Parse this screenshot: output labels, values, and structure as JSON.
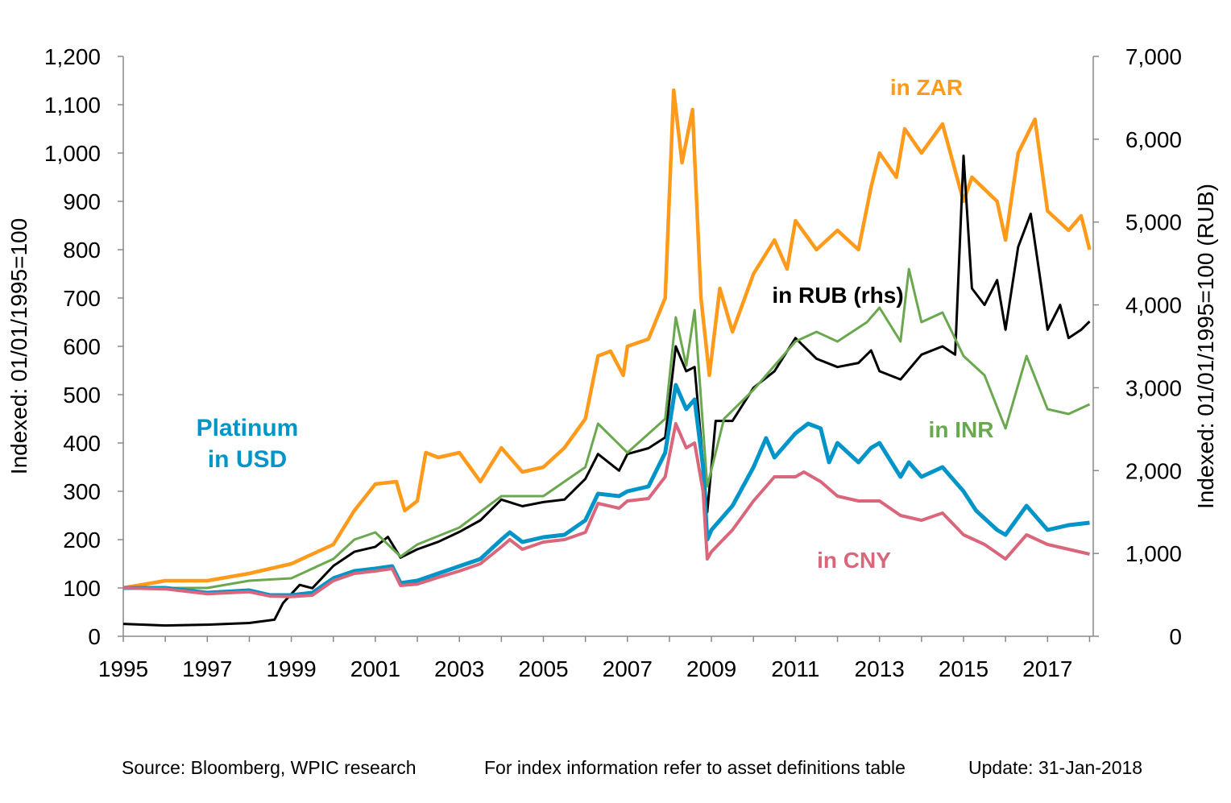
{
  "chart_data": {
    "type": "line",
    "title": "",
    "xlabel": "",
    "ylabel": "Indexed: 01/01/1995=100",
    "ylabel_right": "Indexed: 01/01/1995=100  (RUB)",
    "xlim": [
      1995,
      2018.1
    ],
    "ylim": [
      0,
      1200
    ],
    "ylim_right": [
      0,
      7000
    ],
    "x_ticks": [
      "1995",
      "1997",
      "1999",
      "2001",
      "2003",
      "2005",
      "2007",
      "2009",
      "2011",
      "2013",
      "2015",
      "2017"
    ],
    "y_ticks": [
      "0",
      "100",
      "200",
      "300",
      "400",
      "500",
      "600",
      "700",
      "800",
      "900",
      "1,000",
      "1,100",
      "1,200"
    ],
    "y_ticks_right": [
      "0",
      "1,000",
      "2,000",
      "3,000",
      "4,000",
      "5,000",
      "6,000",
      "7,000"
    ],
    "grid": false,
    "series": [
      {
        "name": "in ZAR",
        "color": "#FF9A1A",
        "axis": "left",
        "width": 4.5,
        "x": [
          1995,
          1996,
          1997,
          1998,
          1999,
          2000,
          2000.5,
          2001,
          2001.5,
          2001.7,
          2002,
          2002.2,
          2002.5,
          2003,
          2003.5,
          2004,
          2004.5,
          2005,
          2005.5,
          2006,
          2006.3,
          2006.6,
          2006.9,
          2007,
          2007.5,
          2007.9,
          2008.1,
          2008.3,
          2008.55,
          2008.75,
          2008.95,
          2009.2,
          2009.5,
          2010,
          2010.5,
          2010.8,
          2011,
          2011.5,
          2012,
          2012.5,
          2012.8,
          2013,
          2013.4,
          2013.6,
          2014,
          2014.5,
          2015,
          2015.2,
          2015.8,
          2016,
          2016.3,
          2016.7,
          2017,
          2017.5,
          2017.8,
          2018
        ],
        "y": [
          100,
          115,
          115,
          130,
          150,
          190,
          260,
          315,
          320,
          260,
          280,
          380,
          370,
          380,
          320,
          390,
          340,
          350,
          390,
          450,
          580,
          590,
          540,
          600,
          615,
          700,
          1130,
          980,
          1090,
          700,
          540,
          720,
          630,
          750,
          820,
          760,
          860,
          800,
          840,
          800,
          930,
          1000,
          950,
          1050,
          1000,
          1060,
          900,
          950,
          900,
          820,
          1000,
          1070,
          880,
          840,
          870,
          800
        ]
      },
      {
        "name": "in RUB (rhs)",
        "color": "#000000",
        "axis": "right",
        "width": 3,
        "x": [
          1995,
          1996,
          1997,
          1998,
          1998.6,
          1998.8,
          1999.2,
          1999.5,
          2000,
          2000.5,
          2001,
          2001.3,
          2001.6,
          2002,
          2002.5,
          2003,
          2003.5,
          2004,
          2004.5,
          2005,
          2005.5,
          2006,
          2006.3,
          2006.8,
          2007,
          2007.5,
          2007.9,
          2008.15,
          2008.4,
          2008.6,
          2008.9,
          2009.1,
          2009.5,
          2010,
          2010.5,
          2011,
          2011.5,
          2012,
          2012.5,
          2012.8,
          2013,
          2013.5,
          2014,
          2014.5,
          2014.8,
          2015,
          2015.2,
          2015.5,
          2015.8,
          2016,
          2016.3,
          2016.6,
          2016.8,
          2017,
          2017.3,
          2017.5,
          2017.8,
          2018
        ],
        "y": [
          150,
          130,
          140,
          160,
          200,
          400,
          620,
          580,
          850,
          1020,
          1080,
          1200,
          950,
          1050,
          1140,
          1260,
          1400,
          1650,
          1570,
          1620,
          1650,
          1900,
          2200,
          2000,
          2200,
          2270,
          2400,
          3500,
          3200,
          3250,
          1500,
          2600,
          2600,
          3000,
          3200,
          3600,
          3350,
          3250,
          3300,
          3450,
          3200,
          3100,
          3400,
          3500,
          3400,
          5800,
          4200,
          4000,
          4300,
          3700,
          4700,
          5100,
          4400,
          3700,
          4000,
          3600,
          3700,
          3800
        ]
      },
      {
        "name": "in INR",
        "color": "#6AA84F",
        "axis": "left",
        "width": 3,
        "x": [
          1995,
          1997,
          1998,
          1999,
          2000,
          2000.5,
          2001,
          2001.6,
          2002,
          2003,
          2004,
          2005,
          2006,
          2006.3,
          2007,
          2007.9,
          2008.15,
          2008.4,
          2008.6,
          2008.9,
          2009.3,
          2010,
          2010.5,
          2011,
          2011.5,
          2012,
          2012.7,
          2013,
          2013.5,
          2013.7,
          2014,
          2014.5,
          2015,
          2015.5,
          2016,
          2016.5,
          2017,
          2017.5,
          2018
        ],
        "y": [
          100,
          100,
          115,
          120,
          160,
          200,
          215,
          165,
          190,
          225,
          290,
          290,
          350,
          440,
          380,
          450,
          660,
          560,
          675,
          310,
          450,
          510,
          560,
          610,
          630,
          610,
          650,
          680,
          610,
          760,
          650,
          670,
          580,
          540,
          430,
          580,
          470,
          460,
          480
        ]
      },
      {
        "name": "Platinum in USD",
        "color": "#0095C8",
        "axis": "left",
        "width": 5,
        "x": [
          1995,
          1996,
          1997,
          1998,
          1998.5,
          1999,
          1999.5,
          2000,
          2000.5,
          2001,
          2001.4,
          2001.6,
          2002,
          2002.5,
          2003,
          2003.5,
          2004,
          2004.2,
          2004.5,
          2005,
          2005.5,
          2006,
          2006.3,
          2006.8,
          2007,
          2007.5,
          2007.9,
          2008.15,
          2008.4,
          2008.6,
          2008.8,
          2008.9,
          2009,
          2009.5,
          2010,
          2010.3,
          2010.5,
          2011,
          2011.3,
          2011.6,
          2011.8,
          2012,
          2012.5,
          2012.8,
          2013,
          2013.5,
          2013.7,
          2014,
          2014.5,
          2015,
          2015.3,
          2015.8,
          2016,
          2016.5,
          2017,
          2017.5,
          2018
        ],
        "y": [
          100,
          100,
          90,
          95,
          85,
          85,
          90,
          120,
          135,
          140,
          145,
          110,
          115,
          130,
          145,
          160,
          200,
          215,
          195,
          205,
          210,
          240,
          295,
          290,
          300,
          310,
          380,
          520,
          470,
          490,
          350,
          200,
          220,
          270,
          350,
          410,
          370,
          420,
          440,
          430,
          360,
          400,
          360,
          390,
          400,
          330,
          360,
          330,
          350,
          300,
          260,
          220,
          210,
          270,
          220,
          230,
          235
        ]
      },
      {
        "name": "in CNY",
        "color": "#D9667A",
        "axis": "left",
        "width": 4,
        "x": [
          1995,
          1996,
          1997,
          1998,
          1998.5,
          1999,
          1999.5,
          2000,
          2000.5,
          2001,
          2001.4,
          2001.6,
          2002,
          2002.5,
          2003,
          2003.5,
          2004,
          2004.2,
          2004.5,
          2005,
          2005.5,
          2006,
          2006.3,
          2006.8,
          2007,
          2007.5,
          2007.9,
          2008.15,
          2008.4,
          2008.6,
          2008.8,
          2008.9,
          2009,
          2009.5,
          2010,
          2010.5,
          2011,
          2011.2,
          2011.6,
          2012,
          2012.5,
          2013,
          2013.5,
          2014,
          2014.5,
          2015,
          2015.5,
          2016,
          2016.5,
          2017,
          2017.5,
          2018
        ],
        "y": [
          100,
          98,
          88,
          92,
          83,
          82,
          85,
          115,
          130,
          135,
          140,
          105,
          108,
          122,
          135,
          150,
          185,
          200,
          180,
          195,
          200,
          215,
          275,
          265,
          280,
          285,
          330,
          440,
          390,
          400,
          300,
          160,
          175,
          220,
          280,
          330,
          330,
          340,
          320,
          290,
          280,
          280,
          250,
          240,
          255,
          210,
          190,
          160,
          210,
          190,
          180,
          170
        ]
      }
    ],
    "annotations": {
      "zar": "in ZAR",
      "rub": "in RUB (rhs)",
      "usd_1": "Platinum",
      "usd_2": "in USD",
      "inr": "in INR",
      "cny": "in CNY"
    }
  },
  "footer": {
    "source": "Source: Bloomberg, WPIC research",
    "note": "For index information refer to asset definitions table",
    "update": "Update: 31-Jan-2018"
  }
}
